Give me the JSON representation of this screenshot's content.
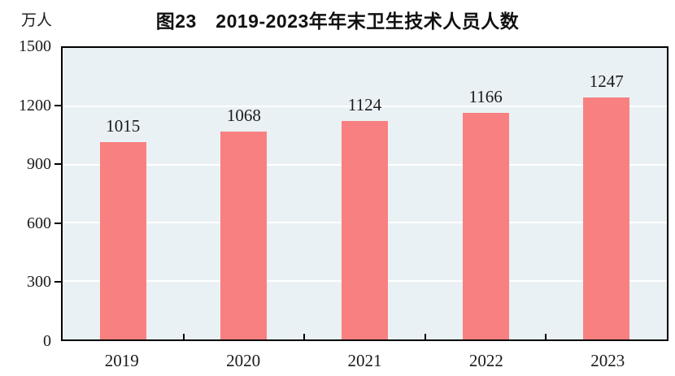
{
  "title": "图23　2019-2023年年末卫生技术人员人数",
  "unit_label": "万人",
  "chart_data": {
    "type": "bar",
    "title": "图23　2019-2023年年末卫生技术人员人数",
    "categories": [
      "2019",
      "2020",
      "2021",
      "2022",
      "2023"
    ],
    "values": [
      1015,
      1068,
      1124,
      1166,
      1247
    ],
    "ylabel": "万人",
    "xlabel": "",
    "ylim": [
      0,
      1500
    ],
    "yticks": [
      0,
      300,
      600,
      900,
      1200,
      1500
    ],
    "grid": true,
    "legend": "none",
    "colors": {
      "bar": "#F98080",
      "plot_background": "#EAF1F4",
      "gridline": "#FFFFFF",
      "axis": "#000000",
      "text": "#1A1A1A"
    }
  }
}
